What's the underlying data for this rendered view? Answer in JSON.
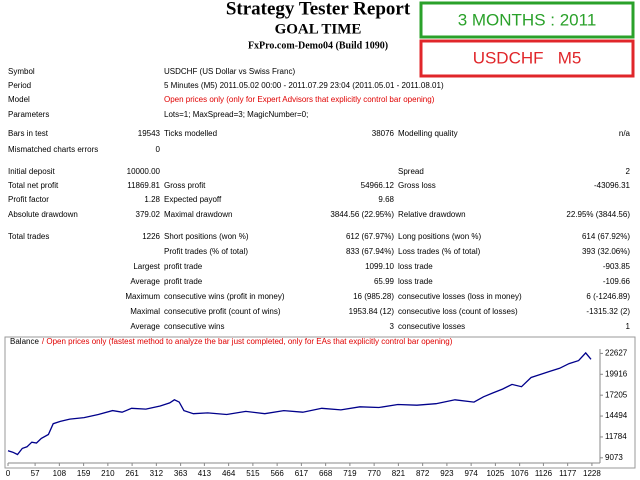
{
  "header": {
    "title": "Strategy Tester Report",
    "subtitle": "GOAL TIME",
    "server": "FxPro.com-Demo04 (Build 1090)"
  },
  "badges": {
    "period": "3 MONTHS : 2011",
    "pair": "USDCHF   M5"
  },
  "info": [
    [
      "Symbol",
      "USDCHF (US Dollar vs Swiss Franc)"
    ],
    [
      "Period",
      "5 Minutes (M5) 2011.05.02 00:00 - 2011.07.29 23:04 (2011.05.01 - 2011.08.01)"
    ],
    [
      "Model",
      "Open prices only (only for Expert Advisors that explicitly control bar opening)"
    ],
    [
      "Parameters",
      "Lots=1; MaxSpread=3; MagicNumber=0;"
    ]
  ],
  "stats": [
    [
      "Bars in test",
      "19543",
      "Ticks modelled",
      "38076",
      "Modelling quality",
      "n/a"
    ],
    [
      "Mismatched charts errors",
      "0",
      null,
      null,
      null,
      null
    ],
    [
      "Initial deposit",
      "10000.00",
      null,
      null,
      "Spread",
      "2"
    ],
    [
      "Total net profit",
      "11869.81",
      "Gross profit",
      "54966.12",
      "Gross loss",
      "-43096.31"
    ],
    [
      "Profit factor",
      "1.28",
      "Expected payoff",
      "9.68",
      null,
      null
    ],
    [
      "Absolute drawdown",
      "379.02",
      "Maximal drawdown",
      "3844.56 (22.95%)",
      "Relative drawdown",
      "22.95% (3844.56)"
    ],
    [
      "Total trades",
      "1226",
      "Short positions (won %)",
      "612 (67.97%)",
      "Long positions (won %)",
      "614 (67.92%)"
    ],
    [
      null,
      null,
      "Profit trades (% of total)",
      "833 (67.94%)",
      "Loss trades (% of total)",
      "393 (32.06%)"
    ],
    [
      null,
      "Largest",
      "profit trade",
      "1099.10",
      "loss trade",
      "-903.85"
    ],
    [
      null,
      "Average",
      "profit trade",
      "65.99",
      "loss trade",
      "-109.66"
    ],
    [
      null,
      "Maximum",
      "consecutive wins (profit in money)",
      "16 (985.28)",
      "consecutive losses (loss in money)",
      "6 (-1246.89)"
    ],
    [
      null,
      "Maximal",
      "consecutive profit (count of wins)",
      "1953.84 (12)",
      "consecutive loss (count of losses)",
      "-1315.32 (2)"
    ],
    [
      null,
      "Average",
      "consecutive wins",
      "3",
      "consecutive losses",
      "1"
    ]
  ],
  "chart_data": {
    "type": "line",
    "subtitle": "/ Open prices only (fastest method to analyze the bar just completed, only for EAs that explicitly control bar opening)",
    "x": [
      0,
      10,
      20,
      30,
      40,
      50,
      60,
      70,
      85,
      95,
      110,
      130,
      160,
      190,
      220,
      240,
      260,
      290,
      320,
      340,
      350,
      360,
      370,
      390,
      420,
      460,
      500,
      540,
      580,
      620,
      660,
      700,
      740,
      780,
      820,
      860,
      900,
      940,
      980,
      1000,
      1020,
      1040,
      1060,
      1080,
      1100,
      1120,
      1140,
      1160,
      1180,
      1200,
      1215,
      1226
    ],
    "series": [
      {
        "name": "Balance",
        "color": "#00008b",
        "values": [
          10000,
          9800,
          9500,
          10300,
          10500,
          11100,
          11000,
          11600,
          12100,
          13500,
          13800,
          14100,
          14300,
          14700,
          15200,
          15000,
          15500,
          15400,
          15800,
          16200,
          16600,
          16300,
          15200,
          14800,
          14900,
          14700,
          15100,
          14800,
          15200,
          15000,
          15500,
          15300,
          15700,
          15600,
          16000,
          15900,
          16100,
          16600,
          16300,
          17000,
          17500,
          18000,
          18600,
          18300,
          19500,
          19900,
          20300,
          20700,
          21300,
          21700,
          22700,
          21869
        ]
      }
    ],
    "xlim": [
      0,
      1245
    ],
    "ylim": [
      8400,
      23200
    ],
    "xticks": [
      0,
      57,
      108,
      159,
      210,
      261,
      312,
      363,
      413,
      464,
      515,
      566,
      617,
      668,
      719,
      770,
      821,
      872,
      923,
      974,
      1025,
      1076,
      1126,
      1177,
      1228
    ],
    "yticks": [
      9073,
      11784,
      14494,
      17205,
      19916,
      22627
    ]
  }
}
